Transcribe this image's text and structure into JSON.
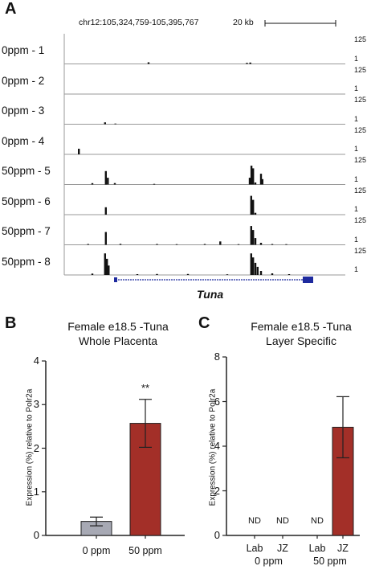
{
  "panels": {
    "a": "A",
    "b": "B",
    "c": "C"
  },
  "browser": {
    "coord": "chr12:105,324,759-105,395,767",
    "scale_label": "20 kb",
    "scale_max": "125",
    "scale_min": "1",
    "gene": "Tuna",
    "tracks": [
      {
        "label": "0ppm - 1",
        "peaks": [
          [
            0.3,
            1.2
          ],
          [
            0.65,
            0.8
          ],
          [
            0.662,
            1.0
          ]
        ]
      },
      {
        "label": "0ppm - 2",
        "peaks": []
      },
      {
        "label": "0ppm - 3",
        "peaks": [
          [
            0.145,
            1.4
          ],
          [
            0.182,
            0.5
          ]
        ]
      },
      {
        "label": "0ppm - 4",
        "peaks": [
          [
            0.052,
            4.2
          ]
        ]
      },
      {
        "label": "50ppm - 5",
        "peaks": [
          [
            0.1,
            1.0
          ],
          [
            0.148,
            10
          ],
          [
            0.155,
            5
          ],
          [
            0.18,
            1.1
          ],
          [
            0.32,
            0.5
          ],
          [
            0.66,
            5
          ],
          [
            0.666,
            14
          ],
          [
            0.672,
            12
          ],
          [
            0.68,
            1.5
          ],
          [
            0.7,
            8
          ],
          [
            0.705,
            4
          ]
        ]
      },
      {
        "label": "50ppm - 6",
        "peaks": [
          [
            0.148,
            5.5
          ],
          [
            0.665,
            14
          ],
          [
            0.672,
            11
          ],
          [
            0.68,
            1.4
          ]
        ]
      },
      {
        "label": "50ppm - 7",
        "peaks": [
          [
            0.085,
            0.6
          ],
          [
            0.148,
            9.5
          ],
          [
            0.2,
            0.7
          ],
          [
            0.33,
            0.6
          ],
          [
            0.4,
            0.5
          ],
          [
            0.5,
            0.6
          ],
          [
            0.555,
            2.5
          ],
          [
            0.62,
            0.5
          ],
          [
            0.665,
            14
          ],
          [
            0.672,
            11
          ],
          [
            0.68,
            5
          ],
          [
            0.7,
            1.5
          ],
          [
            0.74,
            0.6
          ],
          [
            0.79,
            0.5
          ]
        ]
      },
      {
        "label": "50ppm - 8",
        "peaks": [
          [
            0.1,
            1.0
          ],
          [
            0.145,
            16
          ],
          [
            0.152,
            12
          ],
          [
            0.158,
            7
          ],
          [
            0.26,
            0.6
          ],
          [
            0.33,
            0.7
          ],
          [
            0.44,
            0.7
          ],
          [
            0.58,
            0.5
          ],
          [
            0.665,
            16
          ],
          [
            0.672,
            13
          ],
          [
            0.68,
            9
          ],
          [
            0.688,
            6
          ],
          [
            0.7,
            3
          ],
          [
            0.74,
            1.2
          ],
          [
            0.8,
            0.6
          ]
        ]
      }
    ]
  },
  "chart_data": [
    {
      "type": "bar",
      "title": "Female e18.5 -Tuna",
      "subtitle": "Whole Placenta",
      "ylabel": "Expression (%) relative to Polr2a",
      "ylim": [
        0,
        4
      ],
      "yticks": [
        "0",
        "1",
        "2",
        "3",
        "4"
      ],
      "categories": [
        "0 ppm",
        "50 ppm"
      ],
      "values": [
        0.32,
        2.57
      ],
      "errors": [
        0.1,
        0.55
      ],
      "colors": [
        "#a7a9b4",
        "#a32f28"
      ],
      "annotations": [
        {
          "category": "50 ppm",
          "text": "**"
        }
      ]
    },
    {
      "type": "bar",
      "title": "Female e18.5 -Tuna",
      "subtitle": "Layer Specific",
      "ylabel": "Expression (%) relative to Polr2a",
      "ylim": [
        0,
        8
      ],
      "yticks": [
        "0",
        "2",
        "4",
        "6",
        "8"
      ],
      "categories": [
        "Lab",
        "JZ",
        "Lab",
        "JZ"
      ],
      "groups": [
        "0 ppm",
        "50 ppm"
      ],
      "values": [
        null,
        null,
        null,
        4.85
      ],
      "errors": [
        null,
        null,
        null,
        1.37
      ],
      "labels": [
        "ND",
        "ND",
        "ND",
        ""
      ],
      "colors": [
        "#a32f28"
      ]
    }
  ]
}
